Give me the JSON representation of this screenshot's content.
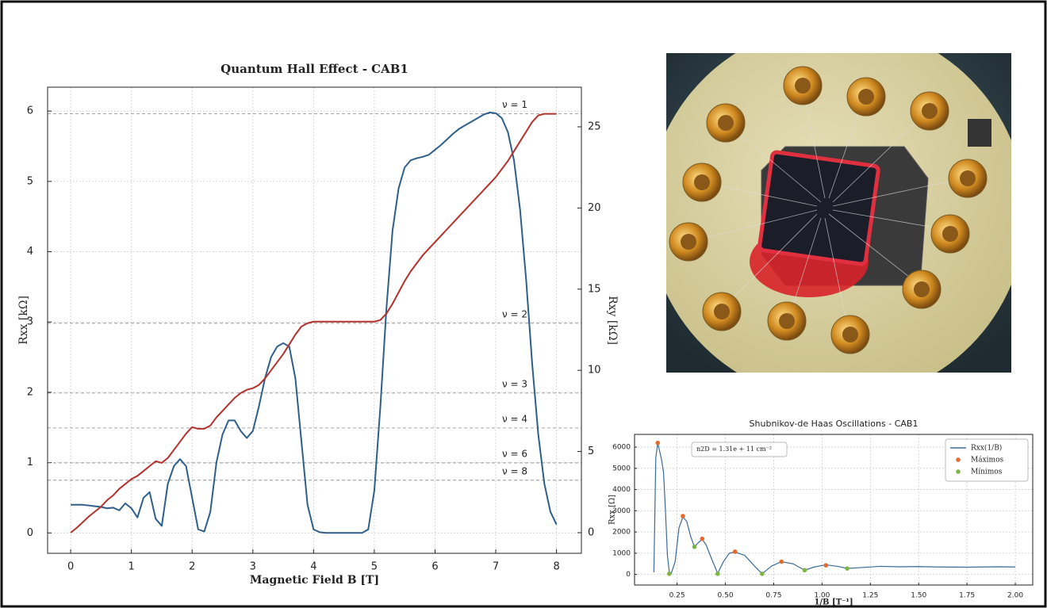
{
  "chart_data": [
    {
      "type": "line",
      "title": "Quantum Hall Effect - CAB1",
      "xlabel": "Magnetic Field B [T]",
      "ylabel": "Rxx [kΩ]",
      "y2label": "Rxy [kΩ]",
      "xlim": [
        -0.38,
        8.41
      ],
      "xticks": [
        0,
        1,
        2,
        3,
        4,
        5,
        6,
        7,
        8
      ],
      "ylim": [
        -0.29,
        6.34
      ],
      "yticks": [
        0,
        1,
        2,
        3,
        4,
        5,
        6
      ],
      "y2lim": [
        -1.27,
        27.44
      ],
      "y2ticks": [
        0,
        5,
        10,
        15,
        20,
        25
      ],
      "grid": true,
      "x": [
        0,
        0.1,
        0.2,
        0.3,
        0.4,
        0.5,
        0.6,
        0.7,
        0.8,
        0.9,
        1,
        1.1,
        1.2,
        1.3,
        1.4,
        1.5,
        1.6,
        1.7,
        1.8,
        1.9,
        2,
        2.1,
        2.2,
        2.3,
        2.4,
        2.5,
        2.6,
        2.7,
        2.8,
        2.9,
        3,
        3.1,
        3.2,
        3.3,
        3.4,
        3.5,
        3.6,
        3.7,
        3.8,
        3.9,
        4,
        4.1,
        4.2,
        4.3,
        4.4,
        4.5,
        4.6,
        4.7,
        4.8,
        4.9,
        5,
        5.1,
        5.2,
        5.3,
        5.4,
        5.5,
        5.6,
        5.7,
        5.8,
        5.9,
        6,
        6.1,
        6.2,
        6.3,
        6.4,
        6.5,
        6.6,
        6.7,
        6.8,
        6.9,
        7,
        7.1,
        7.2,
        7.3,
        7.4,
        7.5,
        7.6,
        7.7,
        7.8,
        7.9,
        8
      ],
      "series": [
        {
          "color": "#2e5f8a",
          "values": [
            0.4,
            0.4,
            0.4,
            0.39,
            0.38,
            0.37,
            0.35,
            0.36,
            0.32,
            0.42,
            0.35,
            0.22,
            0.5,
            0.58,
            0.2,
            0.1,
            0.7,
            0.95,
            1.05,
            0.95,
            0.5,
            0.05,
            0.02,
            0.3,
            1.0,
            1.4,
            1.6,
            1.6,
            1.45,
            1.35,
            1.45,
            1.8,
            2.2,
            2.5,
            2.65,
            2.7,
            2.65,
            2.2,
            1.3,
            0.4,
            0.05,
            0.01,
            0,
            0,
            0,
            0,
            0,
            0,
            0,
            0.05,
            0.6,
            1.8,
            3.2,
            4.3,
            4.9,
            5.2,
            5.3,
            5.33,
            5.35,
            5.38,
            5.45,
            5.52,
            5.6,
            5.68,
            5.75,
            5.8,
            5.85,
            5.9,
            5.95,
            5.98,
            5.97,
            5.9,
            5.7,
            5.3,
            4.6,
            3.6,
            2.4,
            1.4,
            0.7,
            0.3,
            0.12
          ]
        },
        {
          "color": "#b3312b",
          "axis": "y2",
          "values": [
            0,
            0.3,
            0.65,
            1.0,
            1.3,
            1.6,
            2.0,
            2.3,
            2.7,
            3.0,
            3.3,
            3.5,
            3.8,
            4.1,
            4.4,
            4.3,
            4.6,
            5.1,
            5.6,
            6.1,
            6.5,
            6.4,
            6.4,
            6.6,
            7.1,
            7.5,
            7.9,
            8.3,
            8.6,
            8.8,
            8.9,
            9.1,
            9.5,
            10.0,
            10.5,
            11.0,
            11.6,
            12.2,
            12.7,
            12.9,
            13.0,
            13.0,
            13.0,
            13.0,
            13.0,
            13.0,
            13.0,
            13.0,
            13.0,
            13.0,
            13.0,
            13.1,
            13.5,
            14.1,
            14.8,
            15.5,
            16.1,
            16.6,
            17.1,
            17.5,
            17.9,
            18.3,
            18.7,
            19.1,
            19.5,
            19.9,
            20.3,
            20.7,
            21.1,
            21.5,
            21.9,
            22.4,
            22.9,
            23.5,
            24.1,
            24.7,
            25.3,
            25.7,
            25.8,
            25.8,
            25.8
          ]
        }
      ],
      "plateaus": [
        {
          "label": "ν = 1",
          "value": 25.8
        },
        {
          "label": "ν = 2",
          "value": 12.9
        },
        {
          "label": "ν = 3",
          "value": 8.6
        },
        {
          "label": "ν = 4",
          "value": 6.45
        },
        {
          "label": "ν = 6",
          "value": 4.3
        },
        {
          "label": "ν = 8",
          "value": 3.23
        }
      ]
    },
    {
      "type": "line",
      "title": "Shubnikov-de Haas Oscillations - CAB1",
      "xlabel": "1/B [T⁻¹]",
      "ylabel": "Rxx [Ω]",
      "annotation": "n2D = 1.31e + 11 cm⁻²",
      "xlim": [
        0.03,
        2.09
      ],
      "xticks": [
        0.25,
        {
          "value": 0.5,
          "label": "0.50"
        },
        0.75,
        {
          "value": 1,
          "label": "1.00"
        },
        1.25,
        {
          "value": 1.5,
          "label": "1.50"
        },
        1.75,
        {
          "value": 2,
          "label": "2.00"
        }
      ],
      "ylim": [
        -500,
        6600
      ],
      "yticks": [
        0,
        1000,
        2000,
        3000,
        4000,
        5000,
        6000
      ],
      "grid": true,
      "legend": "upper right",
      "series": [
        {
          "name": "Rxx(1/B)",
          "color": "#3a6b98",
          "x": [
            0.13,
            0.14,
            0.15,
            0.16,
            0.17,
            0.18,
            0.19,
            0.2,
            0.21,
            0.22,
            0.24,
            0.26,
            0.28,
            0.3,
            0.32,
            0.34,
            0.36,
            0.38,
            0.4,
            0.43,
            0.46,
            0.49,
            0.52,
            0.55,
            0.6,
            0.65,
            0.69,
            0.74,
            0.79,
            0.85,
            0.91,
            0.96,
            1.02,
            1.08,
            1.13,
            1.2,
            1.3,
            1.4,
            1.5,
            1.6,
            1.75,
            1.9,
            2.0
          ],
          "values": [
            100,
            5500,
            6200,
            5800,
            5400,
            4800,
            3000,
            900,
            100,
            50,
            600,
            2200,
            2700,
            2500,
            1800,
            1300,
            1500,
            1650,
            1400,
            700,
            50,
            600,
            1000,
            1050,
            900,
            400,
            30,
            400,
            600,
            500,
            200,
            350,
            450,
            380,
            280,
            320,
            380,
            360,
            370,
            350,
            340,
            360,
            350
          ]
        },
        {
          "name": "Máximos",
          "color": "#e8692c",
          "style": "markers",
          "x": [
            0.15,
            0.28,
            0.38,
            0.55,
            0.79,
            1.02
          ],
          "values": [
            6200,
            2750,
            1680,
            1070,
            600,
            430
          ]
        },
        {
          "name": "Mínimos",
          "color": "#7cb342",
          "style": "markers",
          "x": [
            0.21,
            0.34,
            0.46,
            0.69,
            0.91,
            1.13
          ],
          "values": [
            30,
            1300,
            30,
            30,
            200,
            280
          ]
        }
      ]
    }
  ]
}
